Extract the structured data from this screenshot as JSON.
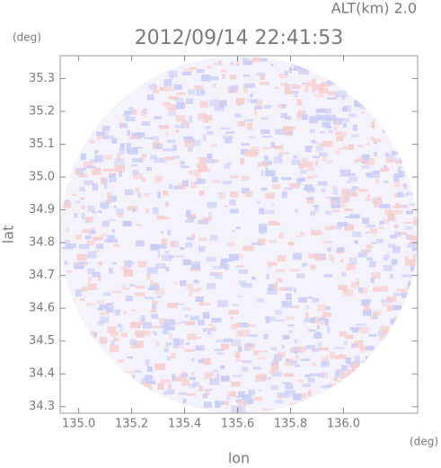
{
  "chart_data": {
    "type": "heatmap",
    "title": "2012/09/14 22:41:53",
    "subtitle": "ALT(km) 2.0",
    "x_label": "lon",
    "x_unit": "(deg)",
    "y_label": "lat",
    "y_unit": "(deg)",
    "xlim": [
      134.93,
      136.28
    ],
    "ylim": [
      34.28,
      35.37
    ],
    "xticks": [
      {
        "value": 135,
        "label": "135.0"
      },
      135.2,
      135.4,
      135.6,
      135.8,
      {
        "value": 136,
        "label": "136.0"
      }
    ],
    "yticks": [
      34.3,
      34.4,
      34.5,
      34.6,
      34.7,
      34.8,
      34.9,
      {
        "value": 35,
        "label": "35.0"
      },
      35.1,
      35.2,
      35.3
    ]
  }
}
